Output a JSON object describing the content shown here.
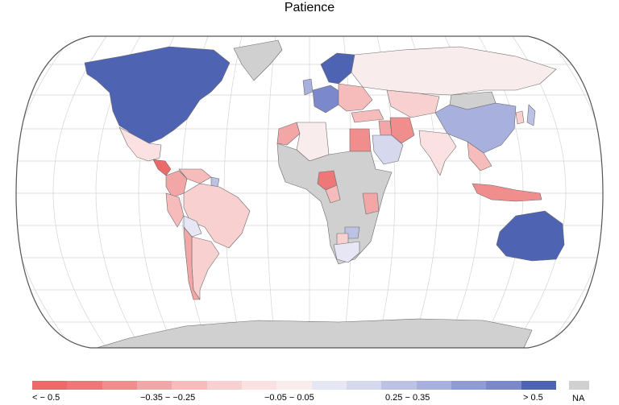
{
  "title": "Patience",
  "colors": {
    "ocean": "#ffffff",
    "na": "#d0d0d0",
    "border": "#6a6a6a",
    "grid": "#d4d4d4",
    "bins": [
      "#ec6a6a",
      "#ee7878",
      "#f08e8e",
      "#f3a6a6",
      "#f6bcbc",
      "#f9d0d0",
      "#fbe1e1",
      "#f8ecec",
      "#e6e6f4",
      "#d6d8ee",
      "#bcc2e6",
      "#a8b0dd",
      "#8f9bd3",
      "#7c88cc",
      "#4f63b3"
    ]
  },
  "legend": {
    "labels": [
      "< − 0.5",
      "−0.35 − −0.25",
      "−0.05 − 0.05",
      "0.25 − 0.35",
      "> 0.5"
    ],
    "na_label": "NA"
  },
  "regions": [
    {
      "name": "north-america",
      "color_bin": 14
    },
    {
      "name": "greenland",
      "color_bin": -1
    },
    {
      "name": "mexico",
      "color_bin": 6
    },
    {
      "name": "central-america",
      "color_bin": 0
    },
    {
      "name": "colombia",
      "color_bin": 3
    },
    {
      "name": "venezuela",
      "color_bin": 4
    },
    {
      "name": "brazil",
      "color_bin": 5
    },
    {
      "name": "peru",
      "color_bin": 4
    },
    {
      "name": "bolivia",
      "color_bin": 8
    },
    {
      "name": "chile",
      "color_bin": 3
    },
    {
      "name": "argentina",
      "color_bin": 5
    },
    {
      "name": "suriname",
      "color_bin": 10
    },
    {
      "name": "scandinavia",
      "color_bin": 14
    },
    {
      "name": "uk",
      "color_bin": 11
    },
    {
      "name": "western-europe",
      "color_bin": 13
    },
    {
      "name": "eastern-europe",
      "color_bin": 4
    },
    {
      "name": "russia",
      "color_bin": 7
    },
    {
      "name": "kazakhstan",
      "color_bin": 5
    },
    {
      "name": "china",
      "color_bin": 11
    },
    {
      "name": "mongolia",
      "color_bin": -1
    },
    {
      "name": "japan",
      "color_bin": 10
    },
    {
      "name": "korea",
      "color_bin": 5
    },
    {
      "name": "india",
      "color_bin": 6
    },
    {
      "name": "southeast-asia",
      "color_bin": 4
    },
    {
      "name": "indonesia",
      "color_bin": 2
    },
    {
      "name": "iran",
      "color_bin": 2
    },
    {
      "name": "iraq",
      "color_bin": 3
    },
    {
      "name": "saudi-arabia",
      "color_bin": 9
    },
    {
      "name": "turkey",
      "color_bin": 4
    },
    {
      "name": "egypt",
      "color_bin": 2
    },
    {
      "name": "morocco",
      "color_bin": 3
    },
    {
      "name": "algeria",
      "color_bin": 7
    },
    {
      "name": "africa-na",
      "color_bin": -1
    },
    {
      "name": "nigeria",
      "color_bin": 1
    },
    {
      "name": "cameroon",
      "color_bin": 4
    },
    {
      "name": "tanzania",
      "color_bin": 3
    },
    {
      "name": "zimbabwe",
      "color_bin": 10
    },
    {
      "name": "botswana",
      "color_bin": 5
    },
    {
      "name": "south-africa",
      "color_bin": 8
    },
    {
      "name": "australia",
      "color_bin": 14
    },
    {
      "name": "antarctica",
      "color_bin": -1
    }
  ]
}
